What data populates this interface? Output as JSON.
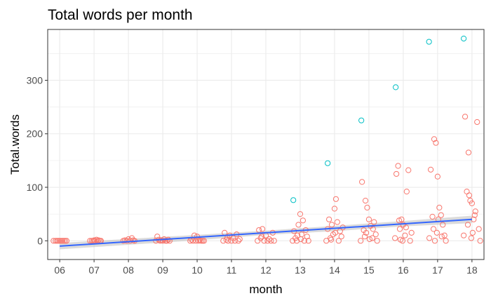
{
  "chart_data": {
    "type": "scatter",
    "title": "Total words per month",
    "xlabel": "month",
    "ylabel": "Total.words",
    "categories": [
      "06",
      "07",
      "08",
      "09",
      "10",
      "11",
      "12",
      "13",
      "14",
      "15",
      "16",
      "17",
      "18"
    ],
    "xlim": [
      -0.35,
      12.35
    ],
    "ylim": [
      -35,
      395
    ],
    "y_ticks": [
      0,
      100,
      200,
      300
    ],
    "grid": true,
    "legend": "none",
    "colors": {
      "points": "#F8766D",
      "outliers": "#00BFC4",
      "trend": "#3366FF",
      "ribbon": "#bebebe",
      "grid": "#ebebeb",
      "panel_border": "#333333"
    },
    "points": [
      {
        "x": -0.12,
        "y": 0
      },
      {
        "x": -0.08,
        "y": 0
      },
      {
        "x": -0.04,
        "y": 0
      },
      {
        "x": 0.0,
        "y": 0
      },
      {
        "x": 0.04,
        "y": 0
      },
      {
        "x": 0.08,
        "y": 0
      },
      {
        "x": 0.12,
        "y": 0
      },
      {
        "x": 0.16,
        "y": 0
      },
      {
        "x": -0.18,
        "y": 0
      },
      {
        "x": 0.2,
        "y": 0
      },
      {
        "x": 0.93,
        "y": 0
      },
      {
        "x": 0.97,
        "y": 0
      },
      {
        "x": 1.0,
        "y": 1
      },
      {
        "x": 1.03,
        "y": 0
      },
      {
        "x": 1.07,
        "y": 2
      },
      {
        "x": 1.1,
        "y": 0
      },
      {
        "x": 1.13,
        "y": 1
      },
      {
        "x": 1.17,
        "y": 0
      },
      {
        "x": 1.2,
        "y": 0
      },
      {
        "x": 0.88,
        "y": 0
      },
      {
        "x": 1.85,
        "y": 0
      },
      {
        "x": 1.9,
        "y": 1
      },
      {
        "x": 1.95,
        "y": 0
      },
      {
        "x": 2.0,
        "y": 3
      },
      {
        "x": 2.05,
        "y": 0
      },
      {
        "x": 2.1,
        "y": 5
      },
      {
        "x": 2.14,
        "y": 1
      },
      {
        "x": 2.18,
        "y": 0
      },
      {
        "x": 2.8,
        "y": 0
      },
      {
        "x": 2.84,
        "y": 8
      },
      {
        "x": 2.88,
        "y": 2
      },
      {
        "x": 2.92,
        "y": 0
      },
      {
        "x": 2.96,
        "y": 1
      },
      {
        "x": 3.0,
        "y": 0
      },
      {
        "x": 3.04,
        "y": 3
      },
      {
        "x": 3.08,
        "y": 0
      },
      {
        "x": 3.12,
        "y": 0
      },
      {
        "x": 3.16,
        "y": 2
      },
      {
        "x": 3.2,
        "y": 0
      },
      {
        "x": 3.8,
        "y": 0
      },
      {
        "x": 3.84,
        "y": 2
      },
      {
        "x": 3.88,
        "y": 0
      },
      {
        "x": 3.92,
        "y": 10
      },
      {
        "x": 3.96,
        "y": 0
      },
      {
        "x": 4.0,
        "y": 8
      },
      {
        "x": 4.04,
        "y": 0
      },
      {
        "x": 4.08,
        "y": 1
      },
      {
        "x": 4.12,
        "y": 0
      },
      {
        "x": 4.16,
        "y": 0
      },
      {
        "x": 4.2,
        "y": 0
      },
      {
        "x": 4.76,
        "y": 0
      },
      {
        "x": 4.8,
        "y": 15
      },
      {
        "x": 4.85,
        "y": 2
      },
      {
        "x": 4.9,
        "y": 0
      },
      {
        "x": 4.95,
        "y": 10
      },
      {
        "x": 5.0,
        "y": 0
      },
      {
        "x": 5.05,
        "y": 5
      },
      {
        "x": 5.1,
        "y": 0
      },
      {
        "x": 5.15,
        "y": 12
      },
      {
        "x": 5.2,
        "y": 0
      },
      {
        "x": 5.24,
        "y": 3
      },
      {
        "x": 4.88,
        "y": 6
      },
      {
        "x": 5.76,
        "y": 0
      },
      {
        "x": 5.8,
        "y": 20
      },
      {
        "x": 5.85,
        "y": 5
      },
      {
        "x": 5.9,
        "y": 22
      },
      {
        "x": 5.95,
        "y": 0
      },
      {
        "x": 6.0,
        "y": 10
      },
      {
        "x": 6.05,
        "y": 0
      },
      {
        "x": 6.1,
        "y": 3
      },
      {
        "x": 6.15,
        "y": 0
      },
      {
        "x": 6.2,
        "y": 15
      },
      {
        "x": 6.24,
        "y": 0
      },
      {
        "x": 5.88,
        "y": 8
      },
      {
        "x": 6.78,
        "y": 0
      },
      {
        "x": 6.82,
        "y": 18
      },
      {
        "x": 6.86,
        "y": 5
      },
      {
        "x": 6.9,
        "y": 0
      },
      {
        "x": 6.95,
        "y": 30
      },
      {
        "x": 7.0,
        "y": 50
      },
      {
        "x": 7.04,
        "y": 12
      },
      {
        "x": 7.08,
        "y": 38
      },
      {
        "x": 7.12,
        "y": 0
      },
      {
        "x": 7.16,
        "y": 20
      },
      {
        "x": 7.2,
        "y": 8
      },
      {
        "x": 7.24,
        "y": 0
      },
      {
        "x": 6.92,
        "y": 10
      },
      {
        "x": 7.02,
        "y": 3
      },
      {
        "x": 7.76,
        "y": 0
      },
      {
        "x": 7.8,
        "y": 22
      },
      {
        "x": 7.84,
        "y": 40
      },
      {
        "x": 7.88,
        "y": 5
      },
      {
        "x": 7.92,
        "y": 30
      },
      {
        "x": 7.96,
        "y": 12
      },
      {
        "x": 8.0,
        "y": 60
      },
      {
        "x": 8.04,
        "y": 78
      },
      {
        "x": 8.08,
        "y": 35
      },
      {
        "x": 8.12,
        "y": 0
      },
      {
        "x": 8.16,
        "y": 18
      },
      {
        "x": 8.2,
        "y": 8
      },
      {
        "x": 8.24,
        "y": 25
      },
      {
        "x": 7.9,
        "y": 2
      },
      {
        "x": 8.02,
        "y": 15
      },
      {
        "x": 8.76,
        "y": 0
      },
      {
        "x": 8.8,
        "y": 110
      },
      {
        "x": 8.85,
        "y": 20
      },
      {
        "x": 8.9,
        "y": 75
      },
      {
        "x": 8.95,
        "y": 62
      },
      {
        "x": 9.0,
        "y": 40
      },
      {
        "x": 9.05,
        "y": 28
      },
      {
        "x": 9.1,
        "y": 5
      },
      {
        "x": 9.15,
        "y": 35
      },
      {
        "x": 9.2,
        "y": 12
      },
      {
        "x": 9.24,
        "y": 0
      },
      {
        "x": 8.92,
        "y": 15
      },
      {
        "x": 9.02,
        "y": 3
      },
      {
        "x": 8.88,
        "y": 8
      },
      {
        "x": 9.12,
        "y": 22
      },
      {
        "x": 9.76,
        "y": 5
      },
      {
        "x": 9.8,
        "y": 125
      },
      {
        "x": 9.85,
        "y": 140
      },
      {
        "x": 9.9,
        "y": 22
      },
      {
        "x": 9.95,
        "y": 40
      },
      {
        "x": 10.0,
        "y": 30
      },
      {
        "x": 10.05,
        "y": 10
      },
      {
        "x": 10.1,
        "y": 92
      },
      {
        "x": 10.15,
        "y": 132
      },
      {
        "x": 10.2,
        "y": 0
      },
      {
        "x": 10.24,
        "y": 15
      },
      {
        "x": 9.88,
        "y": 38
      },
      {
        "x": 9.98,
        "y": 0
      },
      {
        "x": 10.08,
        "y": 25
      },
      {
        "x": 9.92,
        "y": 2
      },
      {
        "x": 10.76,
        "y": 5
      },
      {
        "x": 10.8,
        "y": 133
      },
      {
        "x": 10.85,
        "y": 45
      },
      {
        "x": 10.9,
        "y": 190
      },
      {
        "x": 10.95,
        "y": 183
      },
      {
        "x": 11.0,
        "y": 120
      },
      {
        "x": 11.05,
        "y": 62
      },
      {
        "x": 11.1,
        "y": 48
      },
      {
        "x": 11.15,
        "y": 30
      },
      {
        "x": 11.2,
        "y": 10
      },
      {
        "x": 11.24,
        "y": 0
      },
      {
        "x": 10.88,
        "y": 22
      },
      {
        "x": 10.98,
        "y": 15
      },
      {
        "x": 11.02,
        "y": 40
      },
      {
        "x": 10.92,
        "y": 0
      },
      {
        "x": 11.12,
        "y": 8
      },
      {
        "x": 11.76,
        "y": 10
      },
      {
        "x": 11.8,
        "y": 232
      },
      {
        "x": 11.85,
        "y": 92
      },
      {
        "x": 11.9,
        "y": 165
      },
      {
        "x": 11.95,
        "y": 75
      },
      {
        "x": 12.0,
        "y": 70
      },
      {
        "x": 12.05,
        "y": 40
      },
      {
        "x": 12.1,
        "y": 55
      },
      {
        "x": 12.15,
        "y": 222
      },
      {
        "x": 12.2,
        "y": 22
      },
      {
        "x": 12.24,
        "y": 0
      },
      {
        "x": 11.88,
        "y": 30
      },
      {
        "x": 11.98,
        "y": 5
      },
      {
        "x": 12.02,
        "y": 15
      },
      {
        "x": 11.92,
        "y": 85
      },
      {
        "x": 12.08,
        "y": 48
      }
    ],
    "outliers": [
      {
        "x": 6.8,
        "y": 76
      },
      {
        "x": 7.8,
        "y": 145
      },
      {
        "x": 8.78,
        "y": 225
      },
      {
        "x": 9.78,
        "y": 287
      },
      {
        "x": 10.75,
        "y": 372
      },
      {
        "x": 11.76,
        "y": 378
      }
    ],
    "trend": {
      "x": [
        0,
        12
      ],
      "y": [
        -10,
        40
      ]
    },
    "ribbon": {
      "x": [
        0,
        2,
        4,
        6,
        8,
        10,
        12
      ],
      "upper": [
        -4,
        3.5,
        11,
        19,
        28,
        37,
        47
      ],
      "lower": [
        -16,
        -7.5,
        1,
        11,
        18,
        27,
        33
      ]
    }
  }
}
